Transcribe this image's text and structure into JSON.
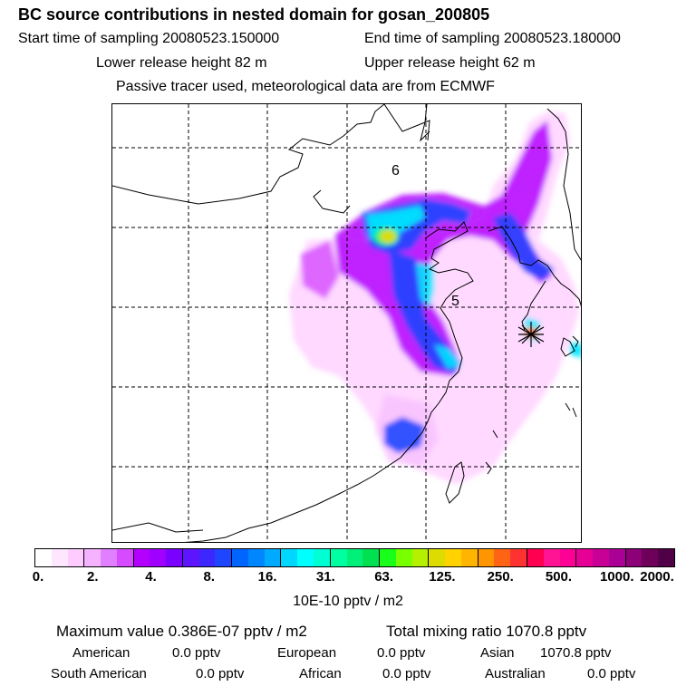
{
  "header": {
    "title": "BC  source contributions in nested domain for gosan_200805",
    "start_sampling": "Start time of sampling 20080523.150000",
    "end_sampling": "End time of sampling 20080523.180000",
    "lower_release": "Lower release height   82 m",
    "upper_release": "Upper release height   62 m",
    "tracer_note": "Passive tracer used, meteorological data are from ECMWF"
  },
  "map": {
    "labels": [
      "6",
      "5"
    ],
    "receptor_marker": "receptor-star-icon"
  },
  "colorbar": {
    "ticks": [
      "0.",
      "2.",
      "4.",
      "8.",
      "16.",
      "31.",
      "63.",
      "125.",
      "250.",
      "500.",
      "1000.",
      "2000."
    ],
    "colors": [
      "#ffffff",
      "#ffe6ff",
      "#ffccff",
      "#f5b3ff",
      "#e07fff",
      "#d64bff",
      "#b400ff",
      "#9f00ff",
      "#7a00ff",
      "#5d14ff",
      "#3c28ff",
      "#1e46ff",
      "#0064ff",
      "#0087ff",
      "#00aaff",
      "#00d7ff",
      "#00ffff",
      "#00ffd2",
      "#00ffa0",
      "#00f079",
      "#00e050",
      "#19ff19",
      "#78ff00",
      "#b4f000",
      "#dcdc00",
      "#ffd200",
      "#ffb400",
      "#ff9600",
      "#ff6414",
      "#ff3232",
      "#ff0050",
      "#ff1493",
      "#ff0096",
      "#e60096",
      "#c80096",
      "#aa0096",
      "#8c0078",
      "#6e005a",
      "#500046"
    ],
    "units": "10E-10 pptv / m2"
  },
  "stats": {
    "max_value": "Maximum value  0.386E-07 pptv / m2",
    "total_mixing": "Total mixing ratio     1070.8 pptv",
    "regions": [
      {
        "name": "American",
        "value": "0.0 pptv"
      },
      {
        "name": "European",
        "value": "0.0 pptv"
      },
      {
        "name": "Asian",
        "value": "1070.8 pptv"
      },
      {
        "name": "South American",
        "value": "0.0 pptv"
      },
      {
        "name": "African",
        "value": "0.0 pptv"
      },
      {
        "name": "Australian",
        "value": "0.0 pptv"
      }
    ]
  }
}
